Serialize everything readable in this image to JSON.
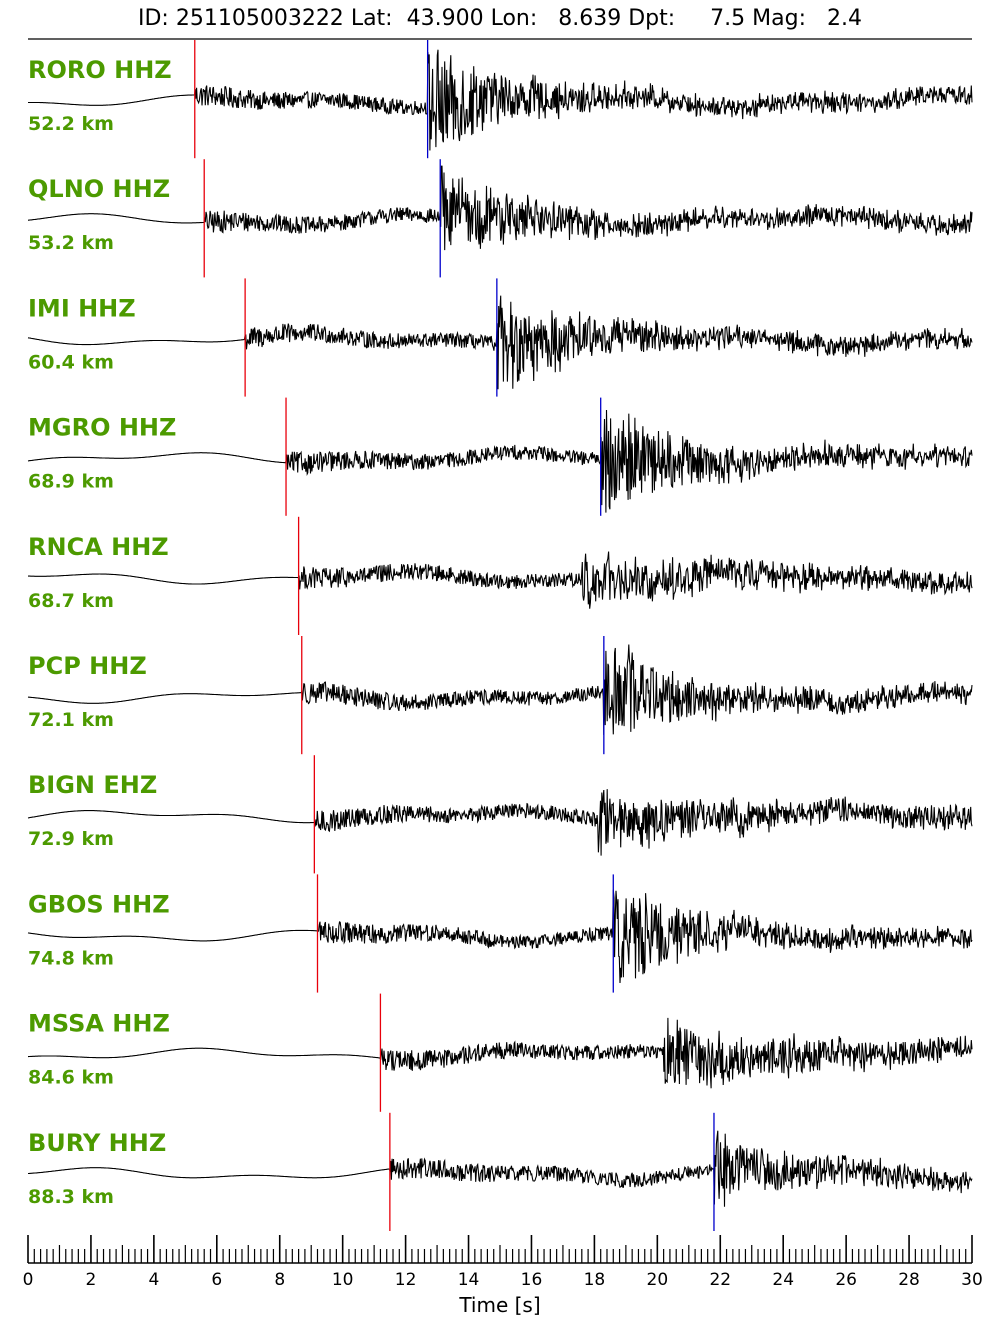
{
  "header": {
    "id_label": "ID:",
    "id": "251105003222",
    "lat_label": "Lat:",
    "lat": "43.900",
    "lon_label": "Lon:",
    "lon": "8.639",
    "dpt_label": "Dpt:",
    "dpt": "7.5",
    "mag_label": "Mag:",
    "mag": "2.4"
  },
  "colors": {
    "station_label": "#4c9a00",
    "p_pick": "#e8000b",
    "s_pick": "#0000cc",
    "trace": "#000000"
  },
  "chart_data": {
    "type": "line",
    "title": "ID: 251105003222 Lat:  43.900 Lon:   8.639 Dpt:     7.5 Mag:   2.4",
    "xlabel": "Time [s]",
    "xlim": [
      0,
      30
    ],
    "x_ticks": [
      "0",
      "2",
      "4",
      "6",
      "8",
      "10",
      "12",
      "14",
      "16",
      "18",
      "20",
      "22",
      "24",
      "26",
      "28",
      "30"
    ],
    "minor_tick_step": 0.2,
    "traces": [
      {
        "station": "RORO HHZ",
        "distance": "52.2 km",
        "p_pick": 5.3,
        "s_pick": 12.7,
        "s_amp": 1.6
      },
      {
        "station": "QLNO HHZ",
        "distance": "53.2 km",
        "p_pick": 5.6,
        "s_pick": 13.1,
        "s_amp": 1.3
      },
      {
        "station": "IMI HHZ",
        "distance": "60.4 km",
        "p_pick": 6.9,
        "s_pick": 14.9,
        "s_amp": 1.4
      },
      {
        "station": "MGRO HHZ",
        "distance": "68.9 km",
        "p_pick": 8.2,
        "s_pick": 18.2,
        "s_amp": 1.5
      },
      {
        "station": "RNCA HHZ",
        "distance": "68.7 km",
        "p_pick": 8.6,
        "s_pick": null,
        "s_amp": 1.0
      },
      {
        "station": "PCP HHZ",
        "distance": "72.1 km",
        "p_pick": 8.7,
        "s_pick": 18.3,
        "s_amp": 1.4
      },
      {
        "station": "BIGN EHZ",
        "distance": "72.9 km",
        "p_pick": 9.1,
        "s_pick": null,
        "s_amp": 1.1
      },
      {
        "station": "GBOS HHZ",
        "distance": "74.8 km",
        "p_pick": 9.2,
        "s_pick": 18.6,
        "s_amp": 1.5
      },
      {
        "station": "MSSA HHZ",
        "distance": "84.6 km",
        "p_pick": 11.2,
        "s_pick": null,
        "s_amp": 1.3
      },
      {
        "station": "BURY HHZ",
        "distance": "88.3 km",
        "p_pick": 11.5,
        "s_pick": 21.8,
        "s_amp": 1.0
      }
    ]
  }
}
